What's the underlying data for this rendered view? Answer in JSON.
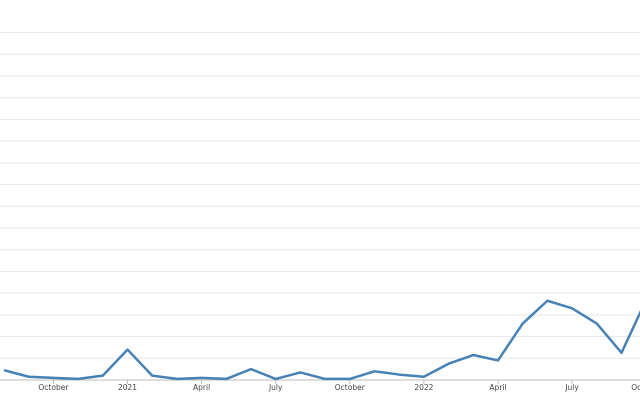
{
  "chart_data": {
    "type": "line",
    "categories": [
      null,
      null,
      "October",
      null,
      null,
      "2021",
      null,
      null,
      "April",
      null,
      null,
      "July",
      null,
      null,
      "October",
      null,
      null,
      "2022",
      null,
      null,
      "April",
      null,
      null,
      "July",
      null,
      null,
      "October"
    ],
    "series": [
      {
        "color": "#4682b4",
        "values": [
          0.45,
          0.15,
          0.1,
          0.05,
          0.2,
          1.4,
          0.2,
          0.05,
          0.1,
          0.05,
          0.5,
          0.05,
          0.35,
          0.05,
          0.05,
          0.4,
          0.25,
          0.15,
          0.75,
          1.15,
          0.9,
          2.6,
          3.65,
          3.3,
          2.6,
          1.25,
          3.7
        ]
      }
    ],
    "ylim": [
      0,
      17.5
    ],
    "yticks": [
      0,
      1,
      2,
      3,
      4,
      5,
      6,
      7,
      8,
      9,
      10,
      11,
      12,
      13,
      14,
      15,
      16
    ],
    "grid": true
  }
}
